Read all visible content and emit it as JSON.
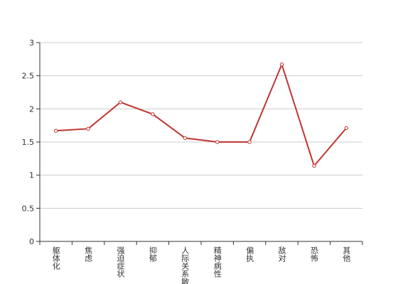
{
  "chart_data": {
    "type": "line",
    "categories": [
      "躯体化",
      "焦虑",
      "强迫症状",
      "抑郁",
      "人际关系敏感",
      "精神病性",
      "偏执",
      "敌对",
      "恐怖",
      "其他"
    ],
    "values": [
      1.67,
      1.7,
      2.1,
      1.92,
      1.56,
      1.5,
      1.5,
      2.67,
      1.14,
      1.71
    ],
    "color": "#c23531",
    "ylim": [
      0,
      3
    ],
    "yticks": [
      0,
      0.5,
      1,
      1.5,
      2,
      2.5,
      3
    ],
    "grid": true
  }
}
